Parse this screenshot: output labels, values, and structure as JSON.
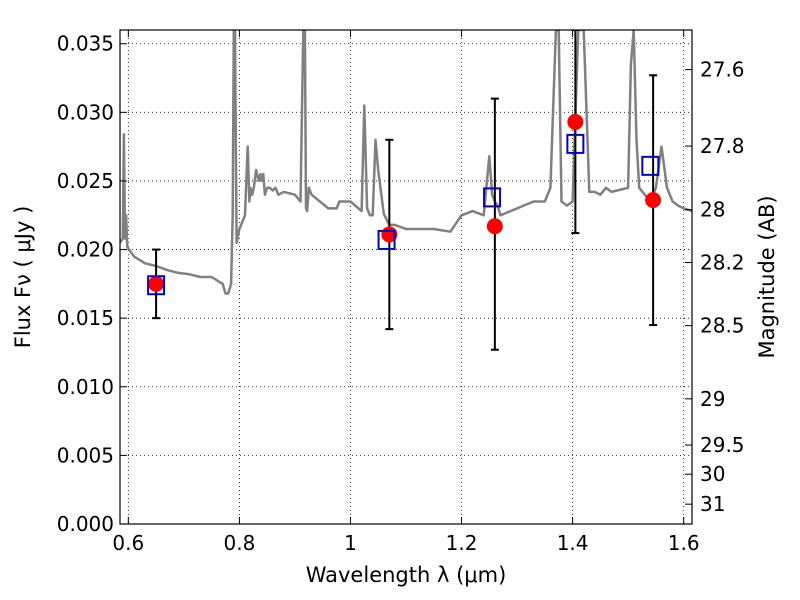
{
  "chart_data": {
    "type": "scatter",
    "xlabel": "Wavelength  λ (μm)",
    "ylabel": "Flux  Fν  ( μJy )",
    "ylabel_right": "Magnitude (AB)",
    "xlim": [
      0.585,
      1.615
    ],
    "ylim": [
      0.0,
      0.036
    ],
    "grid": true,
    "x_ticks": [
      {
        "value": 0.6,
        "label": "0.6"
      },
      {
        "value": 0.8,
        "label": "0.8"
      },
      {
        "value": 1.0,
        "label": "1"
      },
      {
        "value": 1.2,
        "label": "1.2"
      },
      {
        "value": 1.4,
        "label": "1.4"
      },
      {
        "value": 1.6,
        "label": "1.6"
      }
    ],
    "y_ticks": [
      {
        "value": 0.0,
        "label": "0.000"
      },
      {
        "value": 0.005,
        "label": "0.005"
      },
      {
        "value": 0.01,
        "label": "0.010"
      },
      {
        "value": 0.015,
        "label": "0.015"
      },
      {
        "value": 0.02,
        "label": "0.020"
      },
      {
        "value": 0.025,
        "label": "0.025"
      },
      {
        "value": 0.03,
        "label": "0.030"
      },
      {
        "value": 0.035,
        "label": "0.035"
      }
    ],
    "right_ticks": [
      {
        "mag": 27.6,
        "label": "27.6"
      },
      {
        "mag": 27.8,
        "label": "27.8"
      },
      {
        "mag": 28.0,
        "label": "28"
      },
      {
        "mag": 28.2,
        "label": "28.2"
      },
      {
        "mag": 28.5,
        "label": "28.5"
      },
      {
        "mag": 29.0,
        "label": "29"
      },
      {
        "mag": 29.5,
        "label": "29.5"
      },
      {
        "mag": 30.0,
        "label": "30"
      },
      {
        "mag": 31.0,
        "label": "31"
      }
    ],
    "model_spectrum": {
      "color": "#808080",
      "x": [
        0.585,
        0.59,
        0.592,
        0.594,
        0.596,
        0.598,
        0.61,
        0.63,
        0.65,
        0.67,
        0.69,
        0.71,
        0.73,
        0.75,
        0.77,
        0.775,
        0.78,
        0.785,
        0.788,
        0.79,
        0.792,
        0.795,
        0.8,
        0.81,
        0.815,
        0.818,
        0.82,
        0.823,
        0.826,
        0.83,
        0.835,
        0.838,
        0.84,
        0.843,
        0.846,
        0.85,
        0.855,
        0.86,
        0.865,
        0.87,
        0.88,
        0.9,
        0.91,
        0.915,
        0.918,
        0.92,
        0.922,
        0.925,
        0.93,
        0.96,
        0.97,
        0.975,
        0.98,
        1.0,
        1.02,
        1.025,
        1.03,
        1.035,
        1.04,
        1.045,
        1.05,
        1.06,
        1.07,
        1.08,
        1.1,
        1.12,
        1.15,
        1.18,
        1.2,
        1.22,
        1.24,
        1.25,
        1.255,
        1.26,
        1.265,
        1.27,
        1.3,
        1.33,
        1.35,
        1.36,
        1.37,
        1.375,
        1.38,
        1.39,
        1.4,
        1.41,
        1.415,
        1.42,
        1.43,
        1.44,
        1.45,
        1.46,
        1.47,
        1.5,
        1.505,
        1.51,
        1.515,
        1.52,
        1.53,
        1.54,
        1.55,
        1.56,
        1.57,
        1.58,
        1.59,
        1.6,
        1.615
      ],
      "y": [
        0.0205,
        0.0208,
        0.0284,
        0.0208,
        0.0225,
        0.0202,
        0.0195,
        0.019,
        0.0188,
        0.0185,
        0.0183,
        0.0182,
        0.018,
        0.018,
        0.0175,
        0.0168,
        0.0168,
        0.0175,
        0.0225,
        0.036,
        0.036,
        0.0205,
        0.0215,
        0.0225,
        0.0275,
        0.0235,
        0.0245,
        0.024,
        0.0245,
        0.0258,
        0.025,
        0.0255,
        0.025,
        0.0255,
        0.024,
        0.0245,
        0.0245,
        0.0243,
        0.0245,
        0.024,
        0.0242,
        0.024,
        0.0235,
        0.036,
        0.036,
        0.023,
        0.0228,
        0.0245,
        0.024,
        0.023,
        0.023,
        0.023,
        0.0235,
        0.0235,
        0.0228,
        0.0305,
        0.023,
        0.0225,
        0.0225,
        0.028,
        0.0258,
        0.0226,
        0.0218,
        0.0218,
        0.0215,
        0.0215,
        0.0215,
        0.0213,
        0.0225,
        0.0228,
        0.0225,
        0.0268,
        0.024,
        0.0235,
        0.0232,
        0.0225,
        0.023,
        0.0235,
        0.0235,
        0.0245,
        0.036,
        0.036,
        0.0235,
        0.0232,
        0.0235,
        0.036,
        0.036,
        0.036,
        0.0242,
        0.0242,
        0.024,
        0.0245,
        0.0242,
        0.0245,
        0.0335,
        0.036,
        0.028,
        0.0245,
        0.024,
        0.0235,
        0.0245,
        0.0275,
        0.0245,
        0.0235,
        0.0232,
        0.023,
        0.0228
      ]
    },
    "observed_points": {
      "color": "#ff0000",
      "x": [
        0.65,
        1.07,
        1.26,
        1.405,
        1.545
      ],
      "y": [
        0.0175,
        0.0211,
        0.0217,
        0.0293,
        0.0236
      ],
      "err_low": [
        0.015,
        0.0142,
        0.0127,
        0.0212,
        0.0145
      ],
      "err_high": [
        0.02,
        0.028,
        0.031,
        0.036,
        0.0327
      ]
    },
    "model_photometry": {
      "color": "#0000cc",
      "x": [
        0.65,
        1.065,
        1.255,
        1.405,
        1.54
      ],
      "y": [
        0.0174,
        0.0207,
        0.0238,
        0.0277,
        0.0261
      ]
    }
  }
}
